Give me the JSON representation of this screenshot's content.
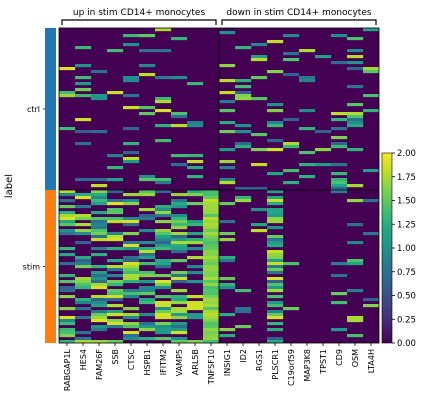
{
  "chart_data": {
    "type": "heatmap",
    "ylabel": "label",
    "groups": [
      {
        "label": "ctrl",
        "color": "#1f77b4",
        "n_cells": 190
      },
      {
        "label": "stim",
        "color": "#ff7f0e",
        "n_cells": 190
      }
    ],
    "gene_groups": [
      {
        "label": "up in stim CD14+ monocytes",
        "start": 0,
        "end": 9
      },
      {
        "label": "down in stim CD14+ monocytes",
        "start": 10,
        "end": 19
      }
    ],
    "genes": [
      "RABGAP1L",
      "HES4",
      "FAM26F",
      "SSB",
      "CTSC",
      "HSPB1",
      "IFITM2",
      "VAMP5",
      "ARL5B",
      "TNFSF10",
      "INSIG1",
      "ID2",
      "RGS1",
      "PLSCR1",
      "C19orf59",
      "MAP3K8",
      "TPST1",
      "CD9",
      "OSM",
      "LTA4H"
    ],
    "expression_level": {
      "ctrl": [
        0.2,
        0.25,
        0.2,
        0.25,
        0.3,
        0.25,
        0.35,
        0.25,
        0.2,
        0.05,
        0.5,
        0.35,
        0.2,
        0.5,
        0.15,
        0.2,
        0.2,
        0.45,
        0.5,
        0.35
      ],
      "stim": [
        0.9,
        0.95,
        1.2,
        1.0,
        1.1,
        0.9,
        1.35,
        1.25,
        0.95,
        1.7,
        0.3,
        0.25,
        0.1,
        1.3,
        0.05,
        0.1,
        0.1,
        0.2,
        0.25,
        0.2
      ]
    },
    "colorbar": {
      "colormap": "viridis",
      "vmin": 0.0,
      "vmax": 2.0,
      "ticks": [
        "0.00",
        "0.25",
        "0.50",
        "0.75",
        "1.00",
        "1.25",
        "1.50",
        "1.75",
        "2.00"
      ]
    }
  }
}
